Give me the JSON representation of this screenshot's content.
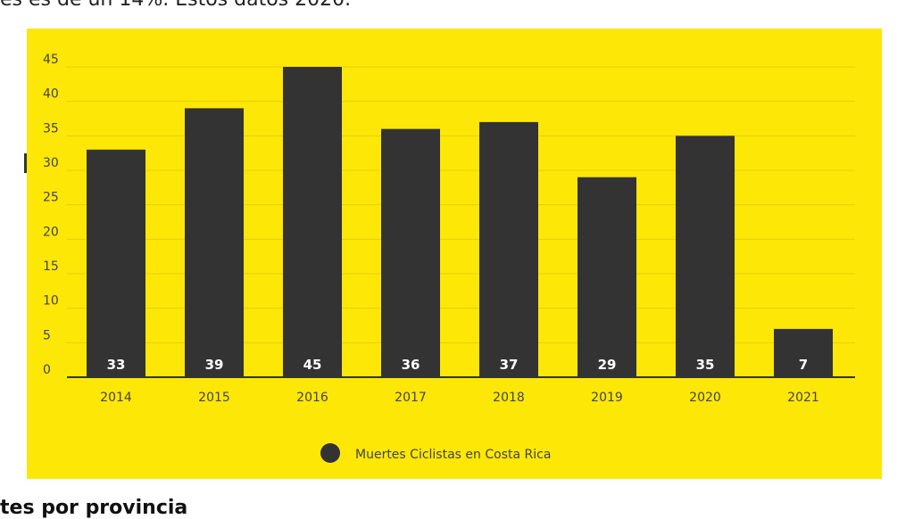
{
  "page": {
    "top_text": "es es de un 14%. Estos datos 2020.",
    "bottom_text": "tes por provincia"
  },
  "colors": {
    "panel_background": "#fde706",
    "bar": "#333333",
    "grid": "#e6cf05",
    "axis": "#333333",
    "tick_text": "#444444",
    "bar_label": "#ffffff"
  },
  "chart_data": {
    "type": "bar",
    "title": "",
    "xlabel": "",
    "ylabel": "",
    "categories": [
      "2014",
      "2015",
      "2016",
      "2017",
      "2018",
      "2019",
      "2020",
      "2021"
    ],
    "series": [
      {
        "name": "Muertes Ciclistas en Costa Rica",
        "values": [
          33,
          39,
          45,
          36,
          37,
          29,
          35,
          7
        ]
      }
    ],
    "data_labels": [
      "33",
      "39",
      "45",
      "36",
      "37",
      "29",
      "35",
      "7"
    ],
    "ylim": [
      0,
      45
    ],
    "yticks": [
      0,
      5,
      10,
      15,
      20,
      25,
      30,
      35,
      40,
      45
    ],
    "grid": true,
    "legend": {
      "position": "bottom-center",
      "entries": [
        "Muertes Ciclistas en Costa Rica"
      ]
    }
  }
}
